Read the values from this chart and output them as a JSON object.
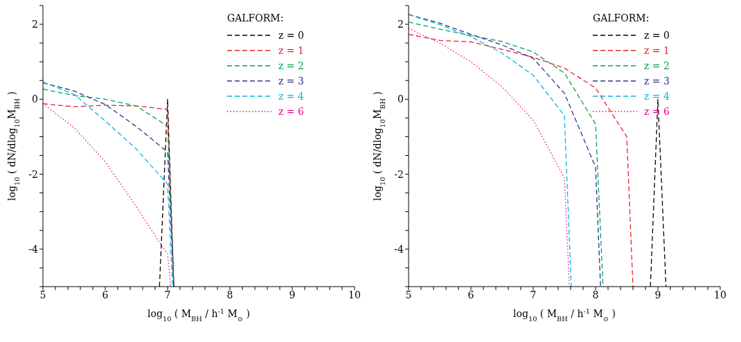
{
  "chart_data": [
    {
      "type": "line",
      "xlabel": "log$_{10}$ ( M$_{BH}$ / h$^{-1}$ M$_{⊙}$ )",
      "ylabel": "log$_{10}$ ( dN/dlog$_{10}$M$_{BH}$ )",
      "legend_title": "GALFORM:",
      "legend": "top right",
      "grid": false,
      "marker": "none",
      "xlim": [
        5,
        10
      ],
      "ylim": [
        -5,
        2.5
      ],
      "xticks": [
        5,
        {
          "value": 5.2,
          "label": null
        },
        {
          "value": 5.4,
          "label": null
        },
        {
          "value": 5.6,
          "label": null
        },
        {
          "value": 5.8,
          "label": null
        },
        6,
        {
          "value": 6.2,
          "label": null
        },
        {
          "value": 6.4,
          "label": null
        },
        {
          "value": 6.6,
          "label": null
        },
        {
          "value": 6.8,
          "label": null
        },
        7,
        {
          "value": 7.2,
          "label": null
        },
        {
          "value": 7.4,
          "label": null
        },
        {
          "value": 7.6,
          "label": null
        },
        {
          "value": 7.8,
          "label": null
        },
        8,
        {
          "value": 8.2,
          "label": null
        },
        {
          "value": 8.4,
          "label": null
        },
        {
          "value": 8.6,
          "label": null
        },
        {
          "value": 8.8,
          "label": null
        },
        9,
        {
          "value": 9.2,
          "label": null
        },
        {
          "value": 9.4,
          "label": null
        },
        {
          "value": 9.6,
          "label": null
        },
        {
          "value": 9.8,
          "label": null
        },
        10
      ],
      "yticks": [
        {
          "value": -5,
          "label": null
        },
        {
          "value": -4.5,
          "label": null
        },
        -4,
        {
          "value": -3.5,
          "label": null
        },
        {
          "value": -3,
          "label": null
        },
        {
          "value": -2.5,
          "label": null
        },
        -2,
        {
          "value": -1.5,
          "label": null
        },
        {
          "value": -1,
          "label": null
        },
        {
          "value": -0.5,
          "label": null
        },
        0,
        {
          "value": 0.5,
          "label": null
        },
        {
          "value": 1,
          "label": null
        },
        {
          "value": 1.5,
          "label": null
        },
        2,
        {
          "value": 2.5,
          "label": null
        }
      ],
      "series": [
        {
          "name": "z = 0",
          "color": "#000000",
          "line_style": "dashed",
          "x": [
            6.87,
            7.0,
            7.1
          ],
          "values": [
            -5,
            0,
            -5
          ]
        },
        {
          "name": "z = 1",
          "color": "#e8202a",
          "line_style": "dashed",
          "x": [
            5,
            5.5,
            6,
            6.5,
            7,
            7.1
          ],
          "values": [
            -0.12,
            -0.2,
            -0.16,
            -0.18,
            -0.27,
            -5
          ]
        },
        {
          "name": "z = 2",
          "color": "#00a550",
          "line_style": "dashed",
          "x": [
            5,
            5.5,
            6,
            6.5,
            7,
            7.1
          ],
          "values": [
            0.27,
            0.1,
            0.0,
            -0.18,
            -0.72,
            -5
          ]
        },
        {
          "name": "z = 3",
          "color": "#2e3192",
          "line_style": "dashed",
          "x": [
            5,
            5.5,
            6,
            6.5,
            7,
            7.1
          ],
          "values": [
            0.44,
            0.22,
            -0.14,
            -0.73,
            -1.41,
            -5
          ]
        },
        {
          "name": "z = 4",
          "color": "#00b4e6",
          "line_style": "dashed",
          "x": [
            5,
            5.5,
            6,
            6.5,
            7,
            7.08
          ],
          "values": [
            0.46,
            0.13,
            -0.58,
            -1.33,
            -2.27,
            -5
          ]
        },
        {
          "name": "z = 6",
          "color": "#ec008c",
          "line_style": "dotted",
          "x": [
            5,
            5.5,
            6,
            6.5,
            6.9,
            7.0,
            7.05
          ],
          "values": [
            -0.12,
            -0.76,
            -1.67,
            -2.87,
            -3.9,
            -4.12,
            -5
          ]
        }
      ]
    },
    {
      "type": "line",
      "xlabel": "log$_{10}$ ( M$_{BH}$ / h$^{-1}$ M$_{⊙}$ )",
      "ylabel": "log$_{10}$ ( dN/dlog$_{10}$M$_{BH}$ )",
      "legend_title": "GALFORM:",
      "legend": "top right",
      "grid": false,
      "marker": "none",
      "xlim": [
        5,
        10
      ],
      "ylim": [
        -5,
        2.5
      ],
      "xticks": [
        5,
        {
          "value": 5.2,
          "label": null
        },
        {
          "value": 5.4,
          "label": null
        },
        {
          "value": 5.6,
          "label": null
        },
        {
          "value": 5.8,
          "label": null
        },
        6,
        {
          "value": 6.2,
          "label": null
        },
        {
          "value": 6.4,
          "label": null
        },
        {
          "value": 6.6,
          "label": null
        },
        {
          "value": 6.8,
          "label": null
        },
        7,
        {
          "value": 7.2,
          "label": null
        },
        {
          "value": 7.4,
          "label": null
        },
        {
          "value": 7.6,
          "label": null
        },
        {
          "value": 7.8,
          "label": null
        },
        8,
        {
          "value": 8.2,
          "label": null
        },
        {
          "value": 8.4,
          "label": null
        },
        {
          "value": 8.6,
          "label": null
        },
        {
          "value": 8.8,
          "label": null
        },
        9,
        {
          "value": 9.2,
          "label": null
        },
        {
          "value": 9.4,
          "label": null
        },
        {
          "value": 9.6,
          "label": null
        },
        {
          "value": 9.8,
          "label": null
        },
        10
      ],
      "yticks": [
        {
          "value": -5,
          "label": null
        },
        {
          "value": -4.5,
          "label": null
        },
        -4,
        {
          "value": -3.5,
          "label": null
        },
        {
          "value": -3,
          "label": null
        },
        {
          "value": -2.5,
          "label": null
        },
        -2,
        {
          "value": -1.5,
          "label": null
        },
        {
          "value": -1,
          "label": null
        },
        {
          "value": -0.5,
          "label": null
        },
        0,
        {
          "value": 0.5,
          "label": null
        },
        {
          "value": 1,
          "label": null
        },
        {
          "value": 1.5,
          "label": null
        },
        2,
        {
          "value": 2.5,
          "label": null
        }
      ],
      "series": [
        {
          "name": "z = 0",
          "color": "#000000",
          "line_style": "dashed",
          "x": [
            8.88,
            9.0,
            9.13
          ],
          "values": [
            -5,
            0,
            -5
          ]
        },
        {
          "name": "z = 1",
          "color": "#e8202a",
          "line_style": "dashed",
          "x": [
            5,
            5.5,
            6,
            6.5,
            7,
            7.5,
            8,
            8.5,
            8.6
          ],
          "values": [
            1.73,
            1.57,
            1.53,
            1.33,
            1.12,
            0.83,
            0.3,
            -1.0,
            -5
          ]
        },
        {
          "name": "z = 2",
          "color": "#00a550",
          "line_style": "dashed",
          "x": [
            5,
            5.5,
            6,
            6.5,
            7,
            7.5,
            8,
            8.12
          ],
          "values": [
            2.06,
            1.87,
            1.7,
            1.54,
            1.26,
            0.7,
            -0.66,
            -5
          ]
        },
        {
          "name": "z = 3",
          "color": "#2e3192",
          "line_style": "dashed",
          "x": [
            5,
            5.5,
            6,
            6.5,
            7,
            7.5,
            8,
            8.08
          ],
          "values": [
            2.26,
            2.03,
            1.73,
            1.45,
            1.09,
            0.16,
            -1.81,
            -5
          ]
        },
        {
          "name": "z = 4",
          "color": "#00b4e6",
          "line_style": "dashed",
          "x": [
            5,
            5.5,
            6,
            6.5,
            7,
            7.5,
            7.61
          ],
          "values": [
            2.26,
            1.99,
            1.67,
            1.23,
            0.64,
            -0.44,
            -5
          ]
        },
        {
          "name": "z = 6",
          "color": "#ec008c",
          "line_style": "dotted",
          "x": [
            5,
            5.5,
            6,
            6.5,
            7,
            7.5,
            7.58
          ],
          "values": [
            1.89,
            1.5,
            1.0,
            0.33,
            -0.56,
            -2.1,
            -5
          ]
        }
      ]
    }
  ]
}
